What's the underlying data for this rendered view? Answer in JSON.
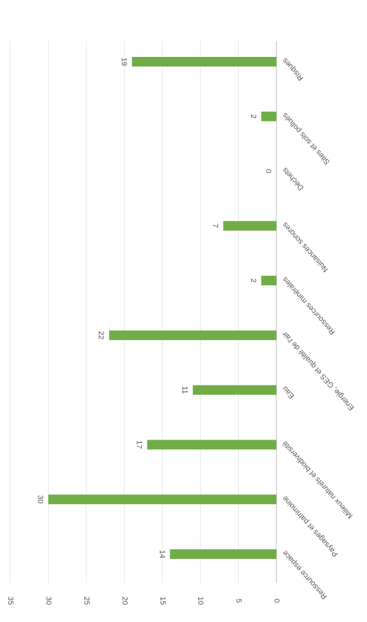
{
  "chart_data": {
    "type": "bar",
    "orientation": "horizontal",
    "categories": [
      "Ressource espace",
      "Paysages et patrimoine",
      "Milieux naturels et biodiversité",
      "Eau",
      "Energie, GES et qualité de l'air",
      "Ressources minérales",
      "Nuisances sonores",
      "Déchets",
      "Sites et sols pollués",
      "Risques"
    ],
    "values": [
      14,
      30,
      17,
      11,
      22,
      2,
      7,
      0,
      2,
      19
    ],
    "color": "#70ad47",
    "ylim": [
      0,
      35
    ],
    "yticks": [
      0,
      5,
      10,
      15,
      20,
      25,
      30,
      35
    ],
    "grid": true
  }
}
